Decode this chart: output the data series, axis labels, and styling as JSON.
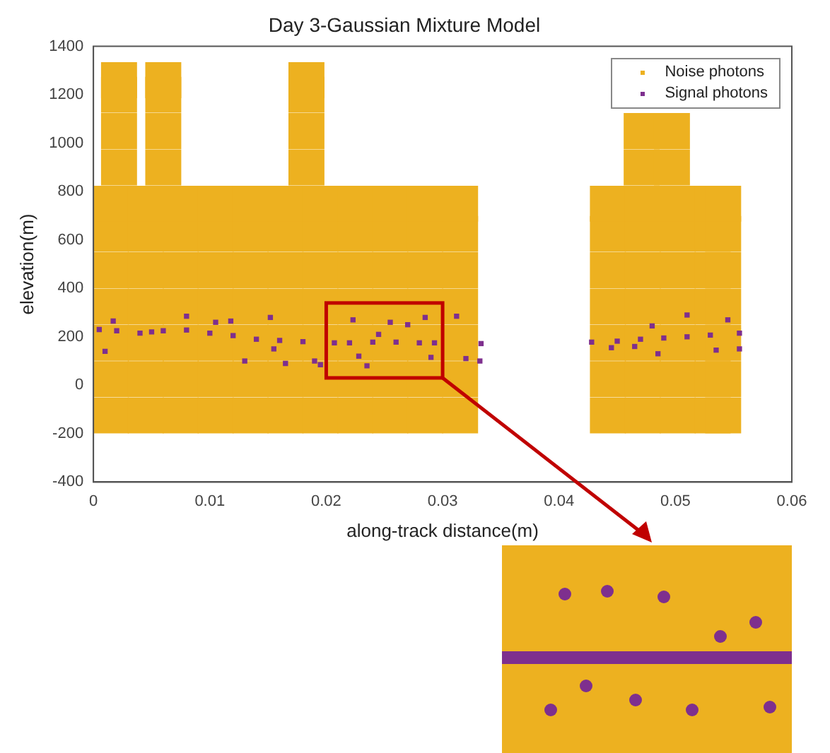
{
  "chart_data": {
    "type": "scatter",
    "title": "Day 3-Gaussian Mixture Model",
    "xlabel": "along-track distance(m)",
    "ylabel": "elevation(m)",
    "xlim": [
      0,
      0.06
    ],
    "xticks": [
      0,
      0.01,
      0.02,
      0.03,
      0.04,
      0.05,
      0.06
    ],
    "ylim": [
      -400,
      1400
    ],
    "yticks": [
      -400,
      -200,
      0,
      200,
      400,
      600,
      800,
      1000,
      1200,
      1400
    ],
    "grid": false,
    "legend": "top right",
    "marker": "square",
    "series": [
      {
        "name": "Noise photons",
        "color": "#edb120",
        "x": [
          0.0015,
          0.0045,
          0.0075,
          0.0105,
          0.0135,
          0.0165,
          0.0195,
          0.0225,
          0.0255,
          0.0285,
          0.0315,
          0.0015,
          0.0045,
          0.0075,
          0.0105,
          0.0135,
          0.0165,
          0.0195,
          0.0225,
          0.0255,
          0.0285,
          0.0315,
          0.0015,
          0.0045,
          0.0075,
          0.0105,
          0.0135,
          0.0165,
          0.0195,
          0.0225,
          0.0255,
          0.0285,
          0.0315,
          0.0015,
          0.0045,
          0.0075,
          0.0105,
          0.0135,
          0.0165,
          0.0195,
          0.0225,
          0.0255,
          0.0285,
          0.0315,
          0.0015,
          0.0045,
          0.0075,
          0.0105,
          0.0135,
          0.0165,
          0.0195,
          0.0225,
          0.0255,
          0.0285,
          0.0315,
          0.0015,
          0.0045,
          0.0075,
          0.0105,
          0.0135,
          0.0165,
          0.0195,
          0.0225,
          0.0255,
          0.0285,
          0.0315,
          0.0015,
          0.0045,
          0.0075,
          0.0105,
          0.0135,
          0.0165,
          0.0195,
          0.0225,
          0.0255,
          0.0285,
          0.0315,
          0.0442,
          0.0472,
          0.0502,
          0.0532,
          0.0541,
          0.0442,
          0.0472,
          0.0502,
          0.0532,
          0.0541,
          0.0442,
          0.0472,
          0.0502,
          0.0532,
          0.0541,
          0.0442,
          0.0472,
          0.0502,
          0.0532,
          0.0541,
          0.0442,
          0.0472,
          0.0502,
          0.0532,
          0.0541,
          0.0442,
          0.0472,
          0.0502,
          0.0532,
          0.0541,
          0.0442,
          0.0472,
          0.0502,
          0.0532,
          0.0541,
          0.0022,
          0.0022,
          0.0022,
          0.0022,
          0.006,
          0.006,
          0.006,
          0.006,
          0.0183,
          0.0183,
          0.0183,
          0.0183,
          0.0471,
          0.0471,
          0.0497,
          0.0497
        ],
        "values": [
          -125,
          -125,
          -125,
          -125,
          -125,
          -125,
          -125,
          -125,
          -125,
          -125,
          -125,
          25,
          25,
          25,
          25,
          25,
          25,
          25,
          25,
          25,
          25,
          25,
          175,
          175,
          175,
          175,
          175,
          175,
          175,
          175,
          175,
          175,
          175,
          325,
          325,
          325,
          325,
          325,
          325,
          325,
          325,
          325,
          325,
          325,
          475,
          475,
          475,
          475,
          475,
          475,
          475,
          475,
          475,
          475,
          475,
          625,
          625,
          625,
          625,
          625,
          625,
          625,
          625,
          625,
          625,
          625,
          750,
          750,
          750,
          750,
          750,
          750,
          750,
          750,
          750,
          750,
          750,
          -125,
          -125,
          -125,
          -125,
          -125,
          25,
          25,
          25,
          25,
          25,
          175,
          175,
          175,
          175,
          175,
          325,
          325,
          325,
          325,
          325,
          475,
          475,
          475,
          475,
          475,
          625,
          625,
          625,
          625,
          625,
          750,
          750,
          750,
          750,
          750,
          900,
          1050,
          1200,
          1260,
          900,
          1050,
          1200,
          1260,
          900,
          1050,
          1200,
          1260,
          900,
          1050,
          900,
          1050
        ]
      },
      {
        "name": "Signal photons",
        "color": "#7e2f8e",
        "x": [
          0.0005,
          0.002,
          0.004,
          0.005,
          0.006,
          0.008,
          0.01,
          0.012,
          0.014,
          0.016,
          0.018,
          0.0207,
          0.022,
          0.024,
          0.026,
          0.028,
          0.0293,
          0.0333,
          0.0428,
          0.045,
          0.047,
          0.049,
          0.051,
          0.053,
          0.0555,
          0.001,
          0.0017,
          0.008,
          0.0105,
          0.0118,
          0.013,
          0.0152,
          0.0155,
          0.0165,
          0.019,
          0.0195,
          0.0223,
          0.0228,
          0.0235,
          0.0245,
          0.0255,
          0.027,
          0.0285,
          0.029,
          0.0312,
          0.032,
          0.0332,
          0.0445,
          0.0465,
          0.048,
          0.0485,
          0.051,
          0.0535,
          0.0545,
          0.0555
        ],
        "values": [
          230,
          225,
          215,
          220,
          225,
          228,
          215,
          205,
          190,
          185,
          180,
          175,
          175,
          178,
          178,
          175,
          175,
          172,
          178,
          182,
          190,
          195,
          200,
          207,
          215,
          140,
          265,
          285,
          260,
          265,
          100,
          280,
          150,
          90,
          100,
          85,
          270,
          120,
          80,
          210,
          260,
          250,
          280,
          115,
          285,
          110,
          100,
          155,
          160,
          245,
          130,
          290,
          145,
          270,
          150
        ]
      }
    ]
  }
}
